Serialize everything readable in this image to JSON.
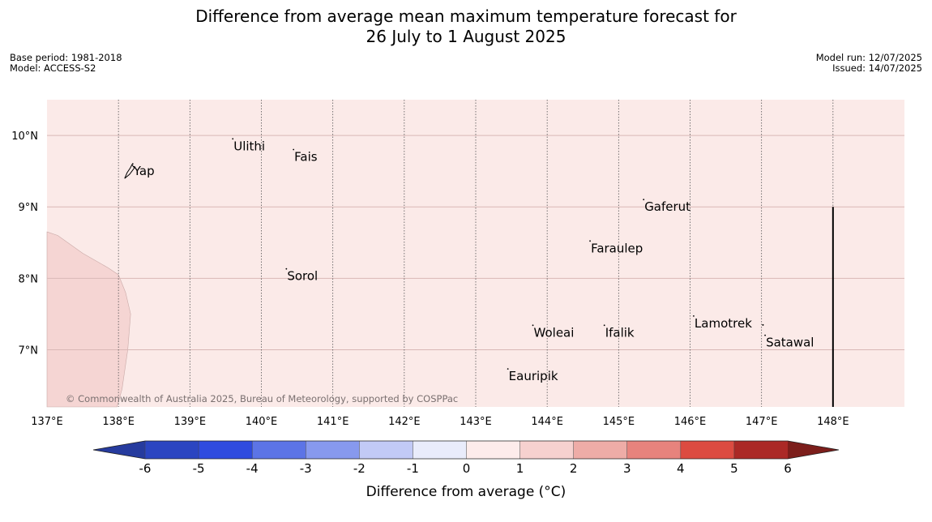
{
  "title": {
    "line1": "Difference from average mean maximum temperature forecast for",
    "line2": "26 July to 1 August 2025"
  },
  "info_left": {
    "base_period": "Base period: 1981-2018",
    "model": "Model: ACCESS-S2"
  },
  "info_right": {
    "model_run": "Model run: 12/07/2025",
    "issued": "Issued: 14/07/2025"
  },
  "copyright": "© Commonwealth of Australia 2025, Bureau of Meteorology, supported by COSPPac",
  "map": {
    "lon_range": [
      137,
      149
    ],
    "lat_range": [
      6.2,
      10.5
    ],
    "lon_ticks": [
      137,
      138,
      139,
      140,
      141,
      142,
      143,
      144,
      145,
      146,
      147,
      148
    ],
    "lon_tick_labels": [
      "137°E",
      "138°E",
      "139°E",
      "140°E",
      "141°E",
      "142°E",
      "143°E",
      "144°E",
      "145°E",
      "146°E",
      "147°E",
      "148°E"
    ],
    "lat_ticks": [
      7,
      8,
      9,
      10
    ],
    "lat_tick_labels": [
      "7°N",
      "8°N",
      "9°N",
      "10°N"
    ],
    "background_anomaly": "0 to 1 °C",
    "colors": {
      "ocean_fill": "#fbeae8",
      "region_fill": "#f5d5d3",
      "gridline_lat": "#d9b8b6",
      "gridline_lon": "#555555"
    },
    "places": [
      {
        "name": "Yap",
        "lon": 138.2,
        "lat": 9.5
      },
      {
        "name": "Ulithi",
        "lon": 139.6,
        "lat": 9.85
      },
      {
        "name": "Fais",
        "lon": 140.45,
        "lat": 9.7
      },
      {
        "name": "Gaferut",
        "lon": 145.35,
        "lat": 9.0
      },
      {
        "name": "Faraulep",
        "lon": 144.6,
        "lat": 8.42
      },
      {
        "name": "Sorol",
        "lon": 140.35,
        "lat": 8.03
      },
      {
        "name": "Lamotrek",
        "lon": 146.05,
        "lat": 7.37
      },
      {
        "name": "Satawal",
        "lon": 147.05,
        "lat": 7.1
      },
      {
        "name": "Woleai",
        "lon": 143.8,
        "lat": 7.24
      },
      {
        "name": "Ifalik",
        "lon": 144.8,
        "lat": 7.24
      },
      {
        "name": "Eauripik",
        "lon": 143.45,
        "lat": 6.63
      }
    ],
    "boundary_line": {
      "lon": 148,
      "lat_from": 6.2,
      "lat_to": 9.0
    }
  },
  "colorbar": {
    "label": "Difference from average (°C)",
    "ticks": [
      "-6",
      "-5",
      "-4",
      "-3",
      "-2",
      "-1",
      "0",
      "1",
      "2",
      "3",
      "4",
      "5",
      "6"
    ],
    "colors": [
      "#263b9e",
      "#2b45c1",
      "#2f4bdf",
      "#5c74e6",
      "#8799ee",
      "#c2caf6",
      "#e9ecfb",
      "#fdeceb",
      "#f6d1cf",
      "#eeaca7",
      "#e7837d",
      "#dc4b41",
      "#ab2926",
      "#7c1e1b"
    ]
  }
}
